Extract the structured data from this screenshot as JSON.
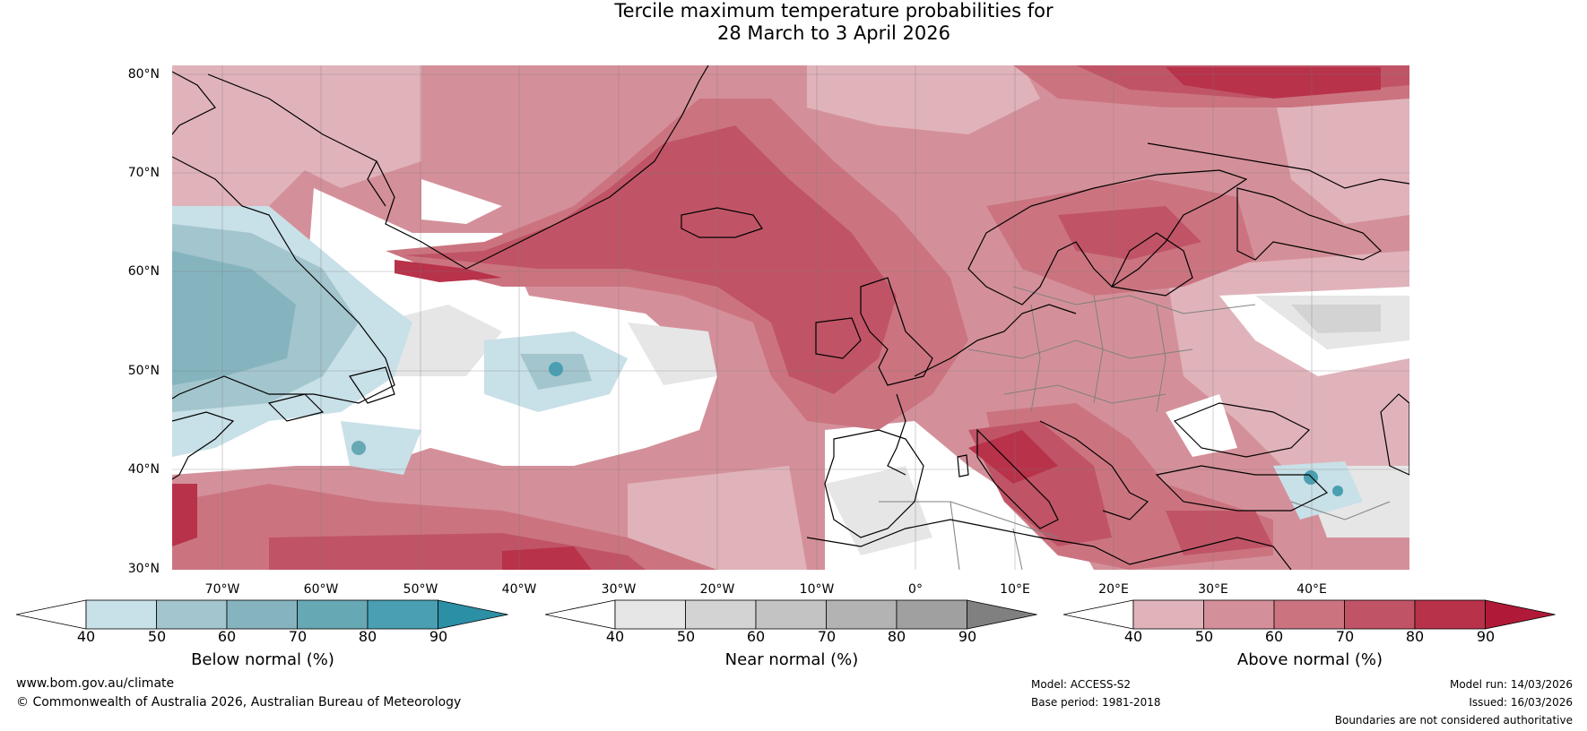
{
  "title": {
    "line1": "Tercile maximum temperature probabilities for",
    "line2": "28 March to 3 April 2026"
  },
  "map": {
    "lat_labels": [
      "80°N",
      "70°N",
      "60°N",
      "50°N",
      "40°N",
      "30°N"
    ],
    "lon_labels": [
      "70°W",
      "60°W",
      "50°W",
      "40°W",
      "30°W",
      "20°W",
      "10°W",
      "0°",
      "10°E",
      "20°E",
      "30°E",
      "40°E"
    ]
  },
  "colorbars": [
    {
      "title": "Below normal (%)",
      "ticks": [
        "40",
        "50",
        "60",
        "70",
        "80",
        "90"
      ],
      "colors": [
        "#ffffff",
        "#c8e0e7",
        "#a3c5cd",
        "#85b4bf",
        "#67a8b5",
        "#4a9fb2",
        "#2b8fa5"
      ]
    },
    {
      "title": "Near normal (%)",
      "ticks": [
        "40",
        "50",
        "60",
        "70",
        "80",
        "90"
      ],
      "colors": [
        "#ffffff",
        "#e6e6e6",
        "#d3d3d3",
        "#c3c3c3",
        "#b3b3b3",
        "#a0a0a0",
        "#808080"
      ]
    },
    {
      "title": "Above normal (%)",
      "ticks": [
        "40",
        "50",
        "60",
        "70",
        "80",
        "90"
      ],
      "colors": [
        "#ffffff",
        "#e0b3ba",
        "#d4909a",
        "#cb7480",
        "#c05466",
        "#b8324a",
        "#b01a38"
      ]
    }
  ],
  "footer": {
    "website": "www.bom.gov.au/climate",
    "copyright": "© Commonwealth of Australia 2026, Australian Bureau of Meteorology",
    "model": "Model: ACCESS-S2",
    "base_period": "Base period: 1981-2018",
    "model_run": "Model run: 14/03/2026",
    "issued": "Issued: 16/03/2026",
    "disclaimer": "Boundaries are not considered authoritative"
  },
  "colors": {
    "above_light": "#e0b3ba",
    "above_mid": "#d4909a",
    "above_strong": "#cb7480",
    "above_deep": "#c05466",
    "above_max": "#b8324a",
    "below_light": "#c8e0e7",
    "below_mid": "#a3c5cd",
    "below_strong": "#85b4bf",
    "below_deep": "#67a8b5",
    "near_light": "#e6e6e6",
    "near_mid": "#d3d3d3",
    "coast": "#000000",
    "border": "#808080",
    "grid": "#7a7a7a"
  }
}
